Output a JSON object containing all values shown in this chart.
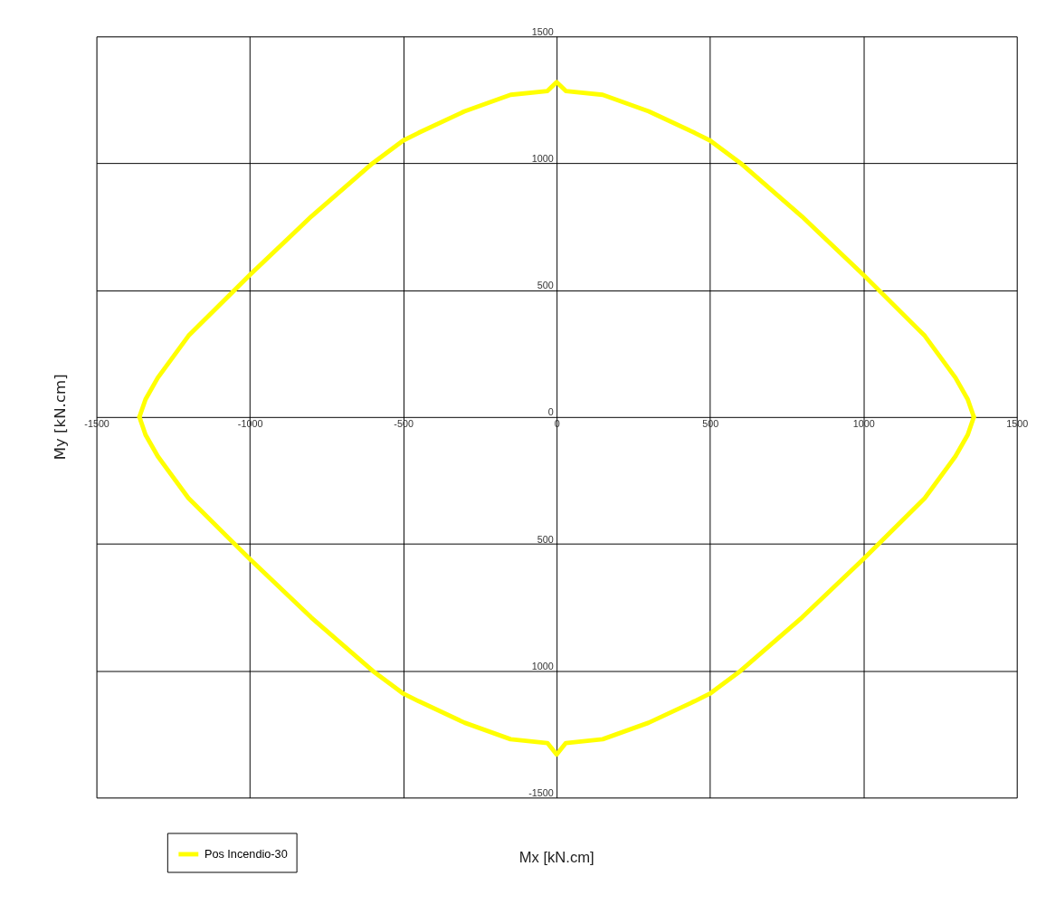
{
  "chart_data": {
    "type": "line",
    "xlabel": "Mx [kN.cm]",
    "ylabel": "My [kN.cm]",
    "xlim": [
      -1500,
      1500
    ],
    "ylim": [
      -1500,
      1500
    ],
    "xticks": [
      -1500,
      -1000,
      -500,
      0,
      500,
      1000,
      1500
    ],
    "yticks": [
      {
        "value": -1500,
        "label": "-1500"
      },
      {
        "value": -1000,
        "label": "1000"
      },
      {
        "value": -500,
        "label": "500"
      },
      0,
      500,
      1000,
      1500
    ],
    "grid": true,
    "legend": "bottom left",
    "marker": "none",
    "line_style": "solid",
    "series": [
      {
        "name": "Pos Incendio-30",
        "color": "#ffff00",
        "x": [
          -1360,
          -1340,
          -1300,
          -1200,
          -1000,
          -800,
          -600,
          -500,
          -450,
          -300,
          -150,
          -30,
          0,
          30,
          150,
          300,
          450,
          500,
          600,
          800,
          1000,
          1200,
          1300,
          1340,
          1360
        ],
        "values": [
          0,
          70,
          155,
          320,
          560,
          790,
          1000,
          1090,
          1120,
          1205,
          1270,
          1285,
          1320,
          1285,
          1270,
          1205,
          1120,
          1090,
          1000,
          790,
          560,
          320,
          155,
          70,
          0
        ]
      },
      {
        "color": "#ffff00",
        "x": [
          -1360,
          -1340,
          -1300,
          -1200,
          -1000,
          -800,
          -600,
          -500,
          -450,
          -300,
          -150,
          -30,
          0,
          30,
          150,
          300,
          450,
          500,
          600,
          800,
          1000,
          1200,
          1300,
          1340,
          1360
        ],
        "values": [
          0,
          -70,
          -155,
          -320,
          -560,
          -790,
          -1000,
          -1090,
          -1120,
          -1205,
          -1270,
          -1285,
          -1330,
          -1285,
          -1270,
          -1205,
          -1120,
          -1090,
          -1000,
          -790,
          -560,
          -320,
          -155,
          -70,
          0
        ]
      }
    ]
  }
}
